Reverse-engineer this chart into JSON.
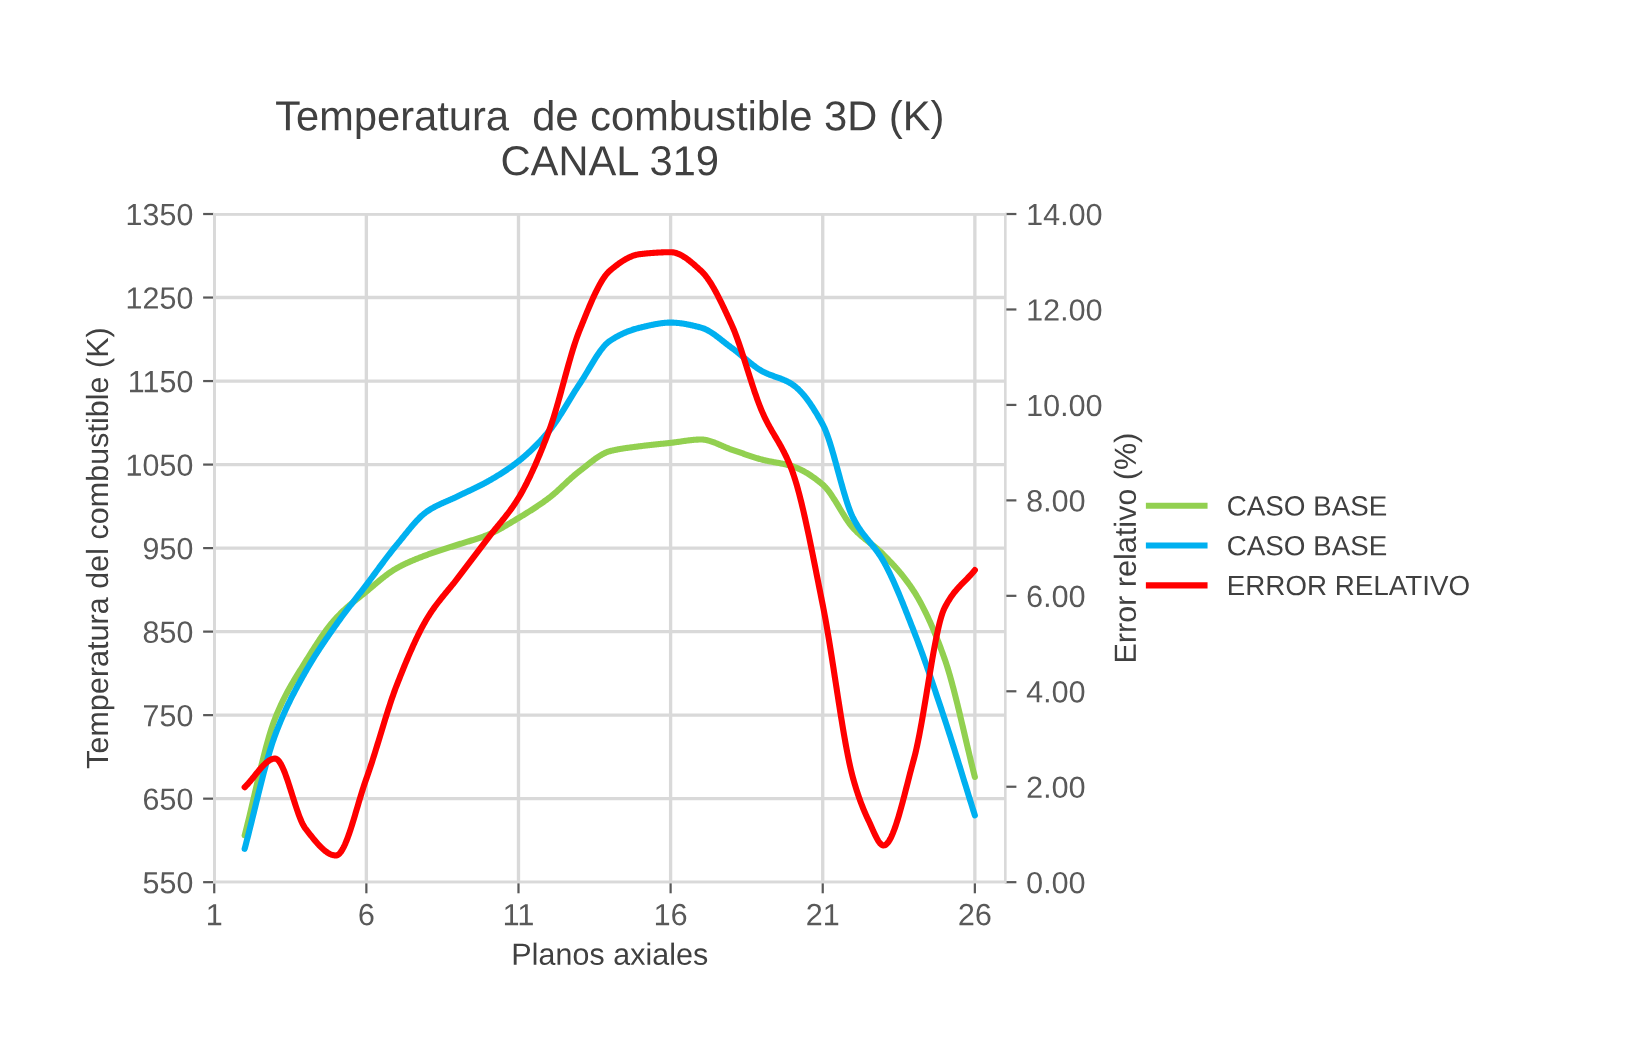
{
  "chart_data": {
    "type": "line",
    "title": "Temperatura  de combustible 3D (K)\nCANAL 319",
    "xlabel": "Planos axiales",
    "ylabel": "Temperatura del combustible (K)",
    "y2label": "Error relativo (%)",
    "x": [
      2,
      3,
      4,
      5,
      6,
      7,
      8,
      9,
      10,
      11,
      12,
      13,
      14,
      15,
      16,
      17,
      18,
      19,
      20,
      21,
      22,
      23,
      24,
      25,
      26
    ],
    "series": [
      {
        "name": "CASO BASE",
        "color": "#92d050",
        "values": [
          606,
          746,
          814,
          866,
          898,
          926,
          942,
          954,
          966,
          986,
          1010,
          1042,
          1066,
          1072,
          1076,
          1080,
          1068,
          1056,
          1048,
          1026,
          974,
          942,
          898,
          818,
          676
        ]
      },
      {
        "name": "CASO BASE",
        "color": "#00b0f0",
        "values": [
          590,
          726,
          802,
          858,
          906,
          954,
          994,
          1012,
          1030,
          1054,
          1090,
          1146,
          1198,
          1214,
          1220,
          1214,
          1190,
          1162,
          1146,
          1098,
          986,
          934,
          850,
          746,
          630
        ]
      },
      {
        "name": "ERROR RELATIVO",
        "color": "#ff0000",
        "axis": "y2",
        "x": [
          2,
          3,
          4,
          5,
          6,
          7,
          8,
          9,
          10,
          11,
          12,
          13,
          14,
          15,
          16,
          17,
          18,
          19,
          20,
          21,
          22,
          22.5,
          23,
          24,
          25,
          26
        ],
        "values": [
          1.99,
          2.59,
          1.12,
          0.56,
          2.17,
          4.13,
          5.53,
          6.37,
          7.21,
          8.05,
          9.45,
          11.55,
          12.81,
          13.16,
          13.2,
          12.81,
          11.69,
          9.87,
          8.61,
          5.81,
          2.17,
          1.3,
          0.77,
          2.59,
          5.74,
          6.54
        ]
      }
    ],
    "xlim": [
      1,
      27
    ],
    "xticks": [
      1,
      6,
      11,
      16,
      21,
      26
    ],
    "ylim": [
      550,
      1350
    ],
    "yticks": [
      550,
      650,
      750,
      850,
      950,
      1050,
      1150,
      1250,
      1350
    ],
    "y2lim": [
      0,
      14
    ],
    "y2ticks": [
      {
        "value": 0,
        "label": "0.00"
      },
      {
        "value": 2,
        "label": "2.00"
      },
      {
        "value": 4,
        "label": "4.00"
      },
      {
        "value": 6,
        "label": "6.00"
      },
      {
        "value": 8,
        "label": "8.00"
      },
      {
        "value": 10,
        "label": "10.00"
      },
      {
        "value": 12,
        "label": "12.00"
      },
      {
        "value": 14,
        "label": "14.00"
      }
    ],
    "grid": true,
    "legend": "right",
    "marker": "none",
    "line_style": "solid"
  }
}
